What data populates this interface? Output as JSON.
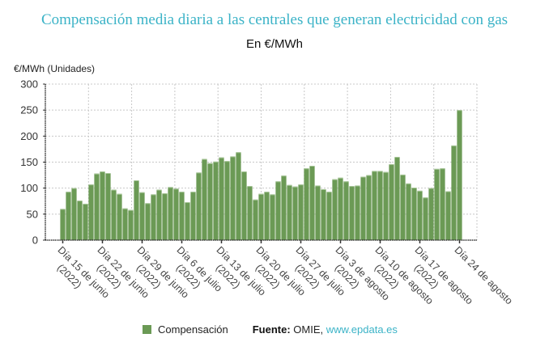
{
  "chart_data": {
    "type": "bar",
    "title": "Compensación media diaria a las centrales que generan electricidad con gas",
    "subtitle": "En €/MWh",
    "ylabel": "€/MWh (Unidades)",
    "xlabel": "",
    "ylim": [
      0,
      300
    ],
    "yticks": [
      0,
      50,
      100,
      150,
      200,
      250,
      300
    ],
    "grid": true,
    "legend": {
      "position": "bottom",
      "entries": [
        "Compensación"
      ]
    },
    "bar_color": "#6b9a55",
    "xtick_labels": [
      {
        "index": 0,
        "line1": "Día 15 de junio",
        "line2": "(2022)"
      },
      {
        "index": 7,
        "line1": "Día 22 de junio",
        "line2": "(2022)"
      },
      {
        "index": 14,
        "line1": "Día 29 de junio",
        "line2": "(2022)"
      },
      {
        "index": 21,
        "line1": "Día 6 de julio",
        "line2": "(2022)"
      },
      {
        "index": 28,
        "line1": "Día 13 de julio",
        "line2": "(2022)"
      },
      {
        "index": 35,
        "line1": "Día 20 de julio",
        "line2": "(2022)"
      },
      {
        "index": 42,
        "line1": "Día 27 de julio",
        "line2": "(2022)"
      },
      {
        "index": 49,
        "line1": "Día 3 de agosto",
        "line2": "(2022)"
      },
      {
        "index": 56,
        "line1": "Día 10 de agosto",
        "line2": "(2022)"
      },
      {
        "index": 63,
        "line1": "Día 17 de agosto",
        "line2": "(2022)"
      },
      {
        "index": 70,
        "line1": "Día 24 de agosto",
        "line2": ""
      }
    ],
    "series": [
      {
        "name": "Compensación",
        "values": [
          60,
          93,
          100,
          76,
          70,
          107,
          128,
          132,
          129,
          97,
          89,
          61,
          58,
          115,
          92,
          71,
          88,
          97,
          90,
          102,
          99,
          93,
          73,
          93,
          130,
          156,
          148,
          151,
          159,
          152,
          161,
          169,
          132,
          104,
          78,
          89,
          93,
          88,
          113,
          124,
          106,
          103,
          107,
          138,
          143,
          105,
          98,
          93,
          117,
          120,
          113,
          104,
          105,
          122,
          125,
          133,
          133,
          131,
          146,
          160,
          126,
          109,
          101,
          95,
          82,
          100,
          137,
          138,
          94,
          182,
          250
        ]
      }
    ]
  },
  "footer": {
    "legend_label": "Compensación",
    "source_prefix": "Fuente:",
    "source_text": " OMIE, ",
    "source_link": "www.epdata.es"
  }
}
